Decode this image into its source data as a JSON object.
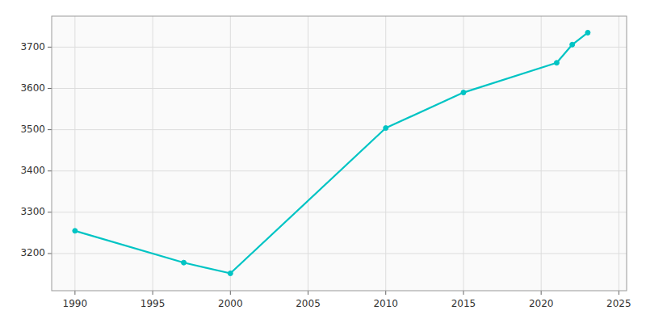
{
  "chart_data": {
    "type": "line",
    "x": [
      1990,
      1997,
      2000,
      2010,
      2015,
      2021,
      2022,
      2023
    ],
    "values": [
      3255,
      3178,
      3152,
      3504,
      3590,
      3662,
      3706,
      3735
    ],
    "color": "#00C4C4",
    "marker": "circle",
    "xlim": [
      1988.5,
      2025.5
    ],
    "ylim": [
      3110,
      3775
    ],
    "xticks": [
      1990,
      1995,
      2000,
      2005,
      2010,
      2015,
      2020,
      2025
    ],
    "yticks": [
      3200,
      3300,
      3400,
      3500,
      3600,
      3700
    ],
    "grid": true
  }
}
